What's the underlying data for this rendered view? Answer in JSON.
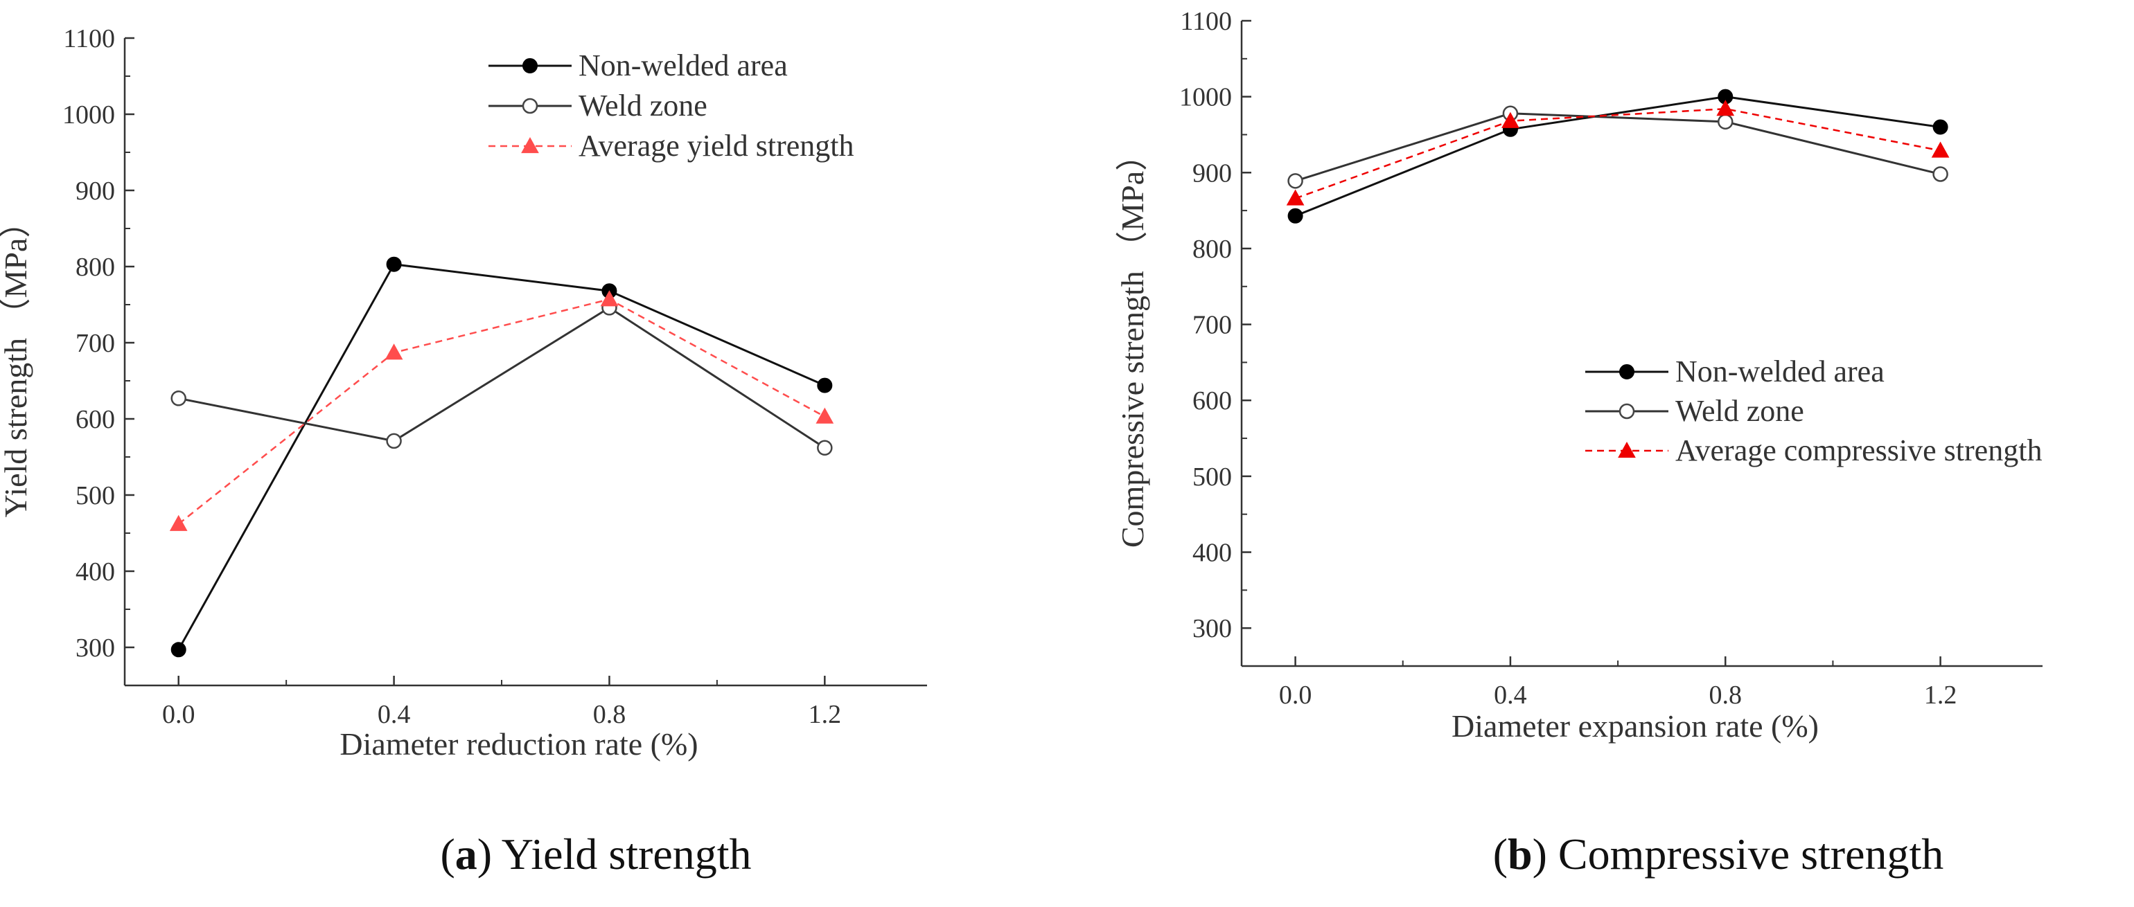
{
  "chart_data": [
    {
      "type": "line",
      "x": [
        0.0,
        0.4,
        0.8,
        1.2
      ],
      "xticks": [
        "0.0",
        "0.4",
        "0.8",
        "1.2"
      ],
      "ylim": [
        250,
        1100
      ],
      "yticks": [
        300,
        400,
        500,
        600,
        700,
        800,
        900,
        1000,
        1100
      ],
      "xlabel": "Diameter reduction rate (%)",
      "ylabel": "Yield strength （MPa）",
      "legend_position": "top-right",
      "grid": false,
      "caption_letter": "a",
      "caption_text": "Yield strength",
      "series": [
        {
          "name": "Non-welded area",
          "values": [
            297,
            803,
            768,
            644
          ],
          "color": "#111111",
          "marker": "filled-circle",
          "dash": "solid"
        },
        {
          "name": "Weld zone",
          "values": [
            627,
            571,
            746,
            562
          ],
          "color": "#333333",
          "marker": "open-circle",
          "dash": "solid"
        },
        {
          "name": "Average yield strength",
          "values": [
            462,
            687,
            757,
            603
          ],
          "color": "#ff4d4d",
          "marker": "triangle",
          "dash": "dashed"
        }
      ]
    },
    {
      "type": "line",
      "x": [
        0.0,
        0.4,
        0.8,
        1.2
      ],
      "xticks": [
        "0.0",
        "0.4",
        "0.8",
        "1.2"
      ],
      "ylim": [
        250,
        1100
      ],
      "yticks": [
        300,
        400,
        500,
        600,
        700,
        800,
        900,
        1000,
        1100
      ],
      "xlabel": "Diameter expansion rate (%)",
      "ylabel": "Compressive strength （MPa）",
      "legend_position": "center-right",
      "grid": false,
      "caption_letter": "b",
      "caption_text": "Compressive strength",
      "series": [
        {
          "name": "Non-welded area",
          "values": [
            843,
            957,
            1000,
            960
          ],
          "color": "#111111",
          "marker": "filled-circle",
          "dash": "solid"
        },
        {
          "name": "Weld zone",
          "values": [
            889,
            978,
            967,
            898
          ],
          "color": "#333333",
          "marker": "open-circle",
          "dash": "solid"
        },
        {
          "name": "Average compressive strength",
          "values": [
            866,
            968,
            984,
            929
          ],
          "color": "#ee0000",
          "marker": "triangle",
          "dash": "dashed"
        }
      ]
    }
  ]
}
